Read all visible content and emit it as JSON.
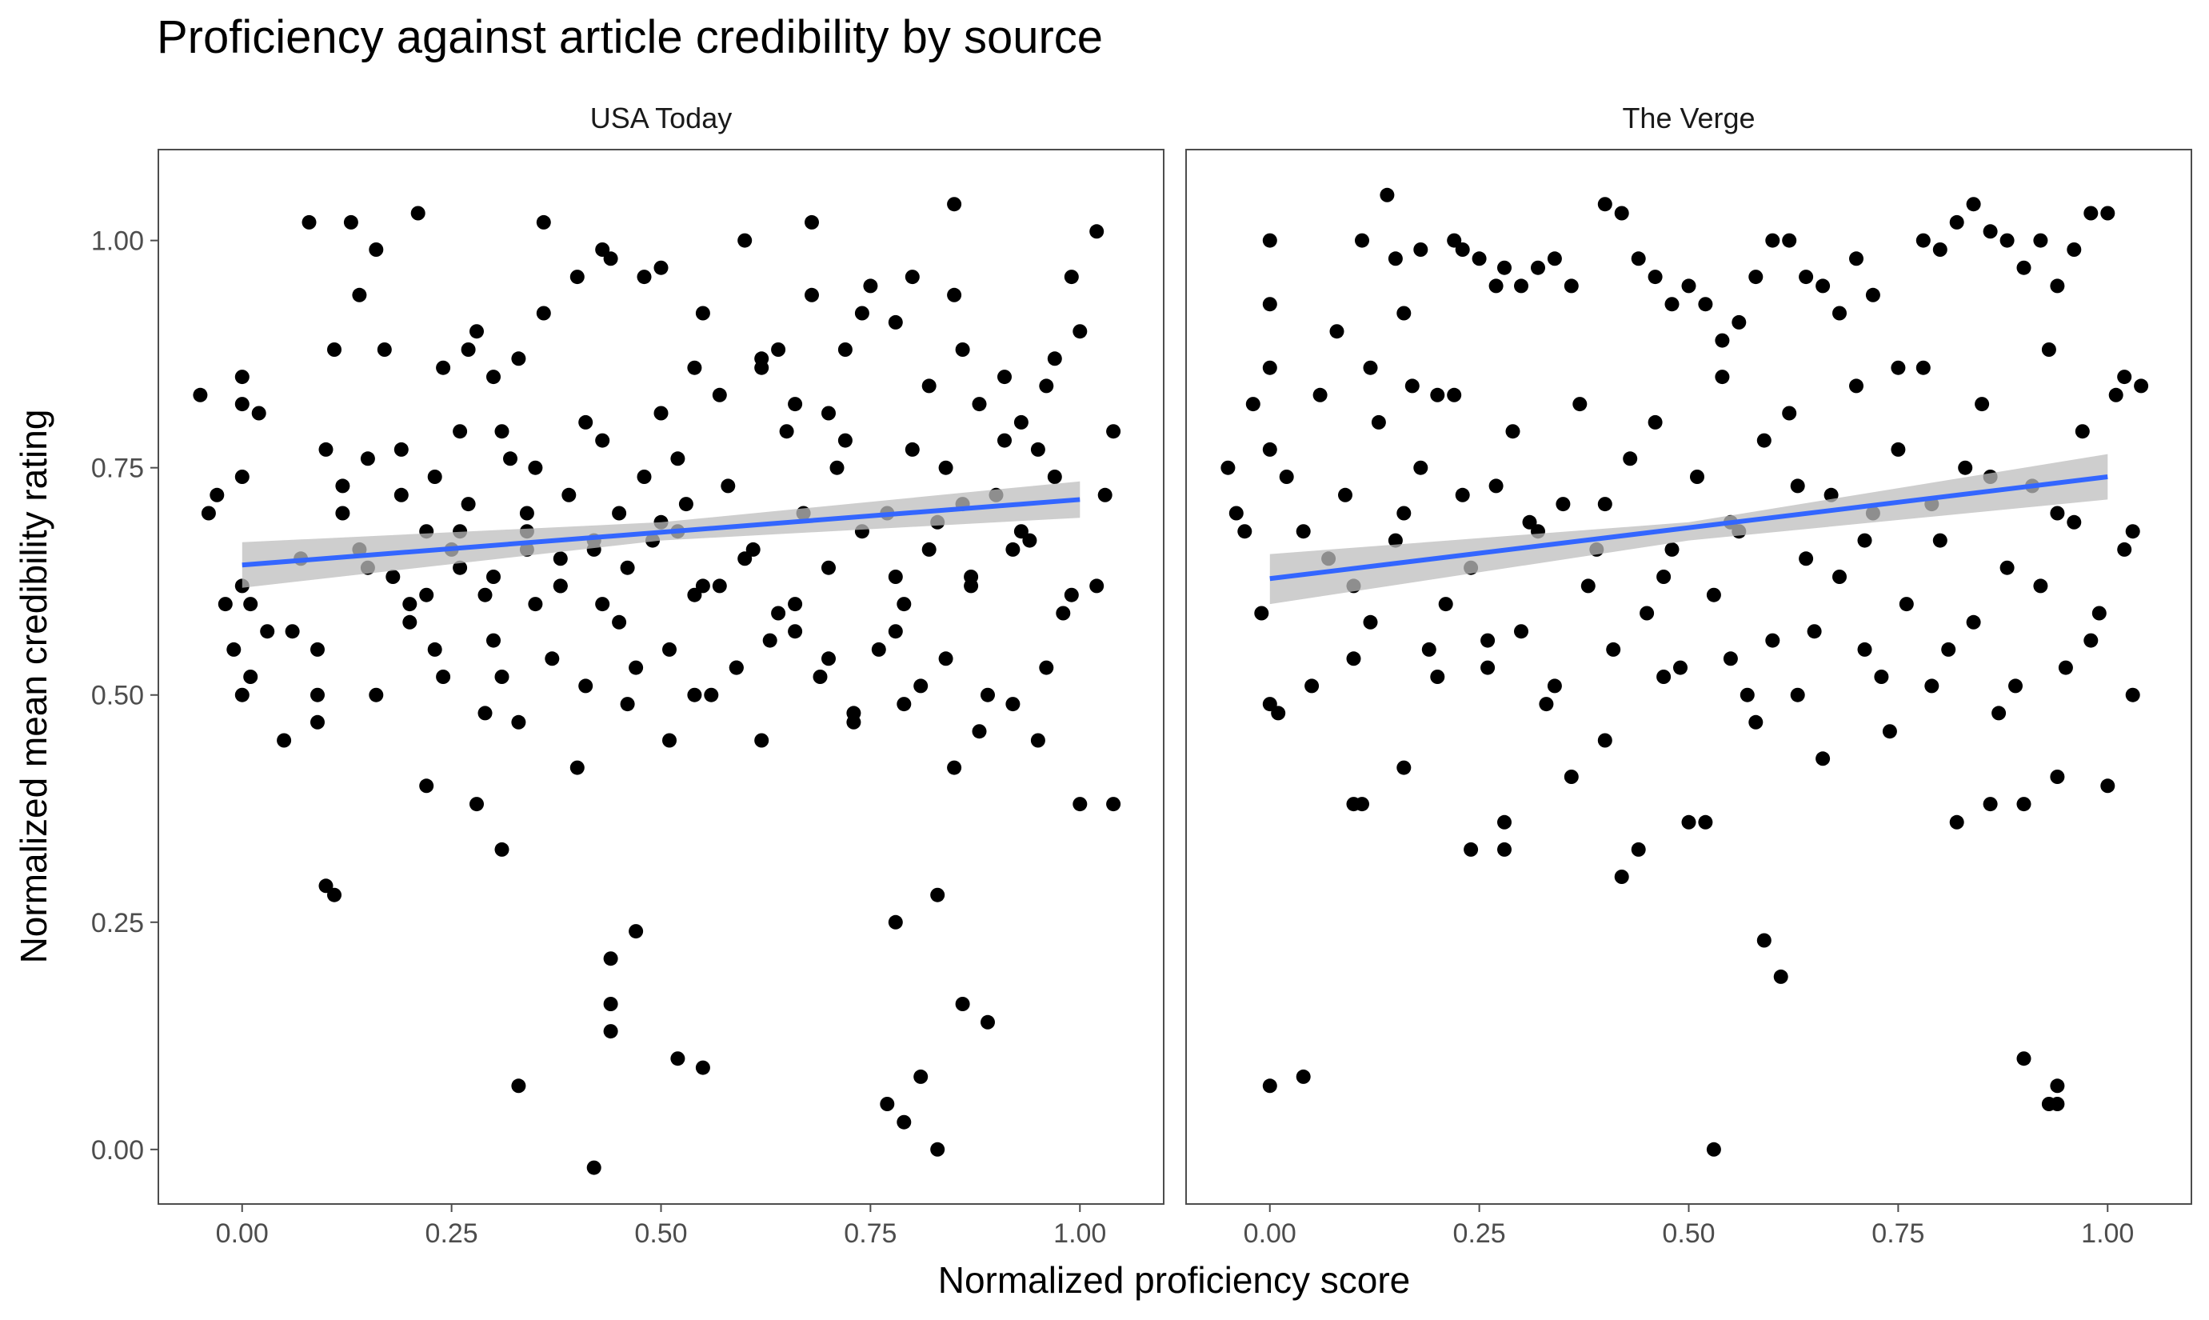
{
  "chart_data": {
    "type": "scatter",
    "title": "Proficiency against article credibility by source",
    "xlabel": "Normalized proficiency score",
    "ylabel": "Normalized mean credibility rating",
    "xlim": [
      -0.1,
      1.1
    ],
    "ylim": [
      -0.06,
      1.1
    ],
    "x_ticks": [
      "0.00",
      "0.25",
      "0.50",
      "0.75",
      "1.00"
    ],
    "y_ticks": [
      "0.00",
      "0.25",
      "0.50",
      "0.75",
      "1.00"
    ],
    "grid": false,
    "colors": {
      "points": "#000000",
      "fit_line": "#3366ff",
      "confidence_band": "#bdbdbd",
      "panel_border": "#4d4d4d"
    },
    "facets": [
      {
        "label": "USA Today",
        "fit_line": {
          "x": [
            0.0,
            1.0
          ],
          "y": [
            0.643,
            0.715
          ]
        },
        "confidence_band": {
          "x": [
            0.0,
            0.5,
            1.0
          ],
          "upper": [
            0.668,
            0.69,
            0.735
          ],
          "lower": [
            0.618,
            0.67,
            0.695
          ]
        },
        "points": {
          "x": [
            -0.05,
            -0.04,
            -0.03,
            -0.02,
            -0.01,
            0.0,
            0.0,
            0.0,
            0.0,
            0.01,
            0.0,
            0.01,
            0.02,
            0.03,
            0.05,
            0.06,
            0.07,
            0.08,
            0.09,
            0.1,
            0.11,
            0.12,
            0.13,
            0.14,
            0.15,
            0.16,
            0.17,
            0.18,
            0.19,
            0.2,
            0.21,
            0.22,
            0.23,
            0.24,
            0.25,
            0.26,
            0.27,
            0.28,
            0.29,
            0.3,
            0.31,
            0.32,
            0.33,
            0.34,
            0.35,
            0.36,
            0.38,
            0.4,
            0.41,
            0.42,
            0.43,
            0.44,
            0.45,
            0.47,
            0.48,
            0.5,
            0.52,
            0.54,
            0.55,
            0.57,
            0.6,
            0.62,
            0.64,
            0.66,
            0.68,
            0.7,
            0.72,
            0.75,
            0.77,
            0.78,
            0.8,
            0.82,
            0.84,
            0.85,
            0.86,
            0.88,
            0.9,
            0.92,
            0.95,
            0.97,
            0.99,
            1.0,
            1.02,
            1.04,
            0.1,
            0.11,
            0.31,
            0.33,
            0.42,
            0.44,
            0.44,
            0.44,
            0.47,
            0.52,
            0.55,
            0.77,
            0.78,
            0.79,
            0.81,
            0.83,
            0.83,
            0.86,
            0.89,
            0.09,
            0.09,
            0.22,
            0.28,
            0.4,
            0.51,
            0.54,
            0.59,
            0.62,
            0.66,
            0.7,
            0.73,
            0.79,
            0.85,
            0.88,
            0.95,
            1.0,
            1.04,
            0.14,
            0.36,
            0.43,
            0.5,
            0.55,
            0.62,
            0.68,
            0.72,
            0.74,
            0.78,
            0.85,
            0.91,
            0.93,
            0.96,
            0.2,
            0.26,
            0.3,
            0.34,
            0.38,
            0.45,
            0.49,
            0.53,
            0.57,
            0.61,
            0.64,
            0.67,
            0.7,
            0.74,
            0.79,
            0.83,
            0.87,
            0.94,
            0.98,
            1.02,
            0.16,
            0.24,
            0.29,
            0.33,
            0.37,
            0.41,
            0.46,
            0.51,
            0.56,
            0.59,
            0.63,
            0.69,
            0.73,
            0.76,
            0.81,
            0.84,
            0.89,
            0.92,
            0.96,
            0.12,
            0.19,
            0.23,
            0.27,
            0.31,
            0.35,
            0.39,
            0.43,
            0.48,
            0.52,
            0.58,
            0.65,
            0.71,
            0.8,
            0.86,
            0.91,
            0.97,
            1.03,
            0.15,
            0.22,
            0.26,
            0.3,
            0.34,
            0.38,
            0.42,
            0.46,
            0.5,
            0.54,
            0.6,
            0.66,
            0.78,
            0.82,
            0.87,
            0.93,
            0.99
          ],
          "y": [
            0.83,
            0.7,
            0.72,
            0.6,
            0.55,
            0.85,
            0.82,
            0.74,
            0.62,
            0.6,
            0.5,
            0.52,
            0.81,
            0.57,
            0.45,
            0.57,
            0.65,
            1.02,
            0.55,
            0.77,
            0.88,
            0.7,
            1.02,
            0.66,
            0.76,
            0.99,
            0.88,
            0.63,
            0.72,
            0.6,
            1.03,
            0.68,
            0.55,
            0.86,
            0.66,
            0.79,
            0.88,
            0.9,
            0.61,
            0.85,
            0.52,
            0.76,
            0.87,
            0.68,
            0.6,
            1.02,
            0.62,
            0.96,
            0.8,
            0.66,
            0.6,
            0.98,
            0.7,
            0.53,
            0.96,
            0.81,
            0.68,
            0.86,
            0.62,
            0.83,
            1.0,
            0.86,
            0.88,
            0.82,
            1.02,
            0.81,
            0.78,
            0.95,
            0.7,
            0.57,
            0.96,
            0.84,
            0.75,
            1.04,
            0.88,
            0.82,
            0.72,
            0.66,
            0.77,
            0.87,
            0.96,
            0.9,
            1.01,
            0.79,
            0.29,
            0.28,
            0.33,
            0.07,
            -0.02,
            0.21,
            0.16,
            0.13,
            0.24,
            0.1,
            0.09,
            0.05,
            0.25,
            0.03,
            0.08,
            0.28,
            0.0,
            0.16,
            0.14,
            0.5,
            0.47,
            0.4,
            0.38,
            0.42,
            0.45,
            0.5,
            0.53,
            0.45,
            0.57,
            0.54,
            0.47,
            0.49,
            0.42,
            0.46,
            0.45,
            0.38,
            0.38,
            0.94,
            0.92,
            0.99,
            0.97,
            0.92,
            0.87,
            0.94,
            0.88,
            0.92,
            0.91,
            0.94,
            0.85,
            0.8,
            0.84,
            0.58,
            0.64,
            0.56,
            0.7,
            0.65,
            0.58,
            0.67,
            0.71,
            0.62,
            0.66,
            0.59,
            0.7,
            0.64,
            0.68,
            0.6,
            0.69,
            0.63,
            0.67,
            0.59,
            0.62,
            0.5,
            0.52,
            0.48,
            0.47,
            0.54,
            0.51,
            0.49,
            0.55,
            0.5,
            0.53,
            0.56,
            0.52,
            0.48,
            0.55,
            0.51,
            0.54,
            0.5,
            0.49,
            0.53,
            0.73,
            0.77,
            0.74,
            0.71,
            0.79,
            0.75,
            0.72,
            0.78,
            0.74,
            0.76,
            0.73,
            0.79,
            0.75,
            0.77,
            0.71,
            0.78,
            0.74,
            0.72,
            0.64,
            0.61,
            0.68,
            0.63,
            0.66,
            0.62,
            0.67,
            0.64,
            0.69,
            0.61,
            0.65,
            0.6,
            0.63,
            0.66,
            0.62,
            0.68,
            0.61
          ]
        }
      },
      {
        "label": "The Verge",
        "fit_line": {
          "x": [
            0.0,
            1.0
          ],
          "y": [
            0.628,
            0.74
          ]
        },
        "confidence_band": {
          "x": [
            0.0,
            0.5,
            1.0
          ],
          "upper": [
            0.655,
            0.69,
            0.765
          ],
          "lower": [
            0.6,
            0.67,
            0.715
          ]
        },
        "points": {
          "x": [
            -0.05,
            -0.04,
            -0.03,
            -0.02,
            -0.01,
            0.0,
            0.0,
            0.0,
            0.0,
            0.0,
            0.01,
            0.02,
            0.04,
            0.06,
            0.08,
            0.1,
            0.11,
            0.12,
            0.14,
            0.15,
            0.16,
            0.17,
            0.18,
            0.2,
            0.22,
            0.23,
            0.25,
            0.27,
            0.28,
            0.3,
            0.32,
            0.34,
            0.36,
            0.4,
            0.42,
            0.44,
            0.46,
            0.48,
            0.5,
            0.52,
            0.54,
            0.56,
            0.58,
            0.6,
            0.62,
            0.64,
            0.66,
            0.68,
            0.7,
            0.72,
            0.75,
            0.78,
            0.8,
            0.82,
            0.84,
            0.86,
            0.88,
            0.9,
            0.92,
            0.94,
            0.96,
            0.98,
            1.0,
            1.02,
            1.04,
            0.0,
            0.04,
            0.42,
            0.44,
            0.5,
            0.52,
            0.53,
            0.59,
            0.61,
            0.9,
            0.93,
            0.94,
            0.94,
            0.1,
            0.11,
            0.16,
            0.24,
            0.28,
            0.28,
            0.36,
            0.4,
            0.58,
            0.66,
            0.74,
            0.82,
            0.86,
            0.9,
            0.94,
            1.0,
            0.05,
            0.19,
            0.26,
            0.33,
            0.47,
            0.55,
            0.63,
            0.71,
            0.79,
            0.87,
            0.95,
            1.03,
            0.12,
            0.21,
            0.3,
            0.38,
            0.45,
            0.53,
            0.6,
            0.68,
            0.76,
            0.84,
            0.92,
            0.99,
            0.07,
            0.15,
            0.24,
            0.31,
            0.39,
            0.47,
            0.56,
            0.64,
            0.72,
            0.8,
            0.88,
            0.96,
            1.02,
            0.09,
            0.18,
            0.27,
            0.35,
            0.43,
            0.51,
            0.59,
            0.67,
            0.75,
            0.83,
            0.91,
            0.97,
            0.13,
            0.22,
            0.29,
            0.37,
            0.46,
            0.54,
            0.62,
            0.7,
            0.78,
            0.85,
            0.93,
            1.01,
            0.1,
            0.2,
            0.26,
            0.34,
            0.41,
            0.49,
            0.57,
            0.65,
            0.73,
            0.81,
            0.89,
            0.98,
            0.16,
            0.23,
            0.32,
            0.4,
            0.48,
            0.55,
            0.63,
            0.71,
            0.79,
            0.86,
            0.94,
            1.03
          ],
          "y": [
            0.75,
            0.7,
            0.68,
            0.82,
            0.59,
            1.0,
            0.93,
            0.86,
            0.77,
            0.49,
            0.48,
            0.74,
            0.68,
            0.83,
            0.9,
            0.62,
            1.0,
            0.86,
            1.05,
            0.98,
            0.92,
            0.84,
            0.99,
            0.83,
            1.0,
            0.99,
            0.98,
            0.95,
            0.97,
            0.95,
            0.97,
            0.98,
            0.95,
            1.04,
            1.03,
            0.98,
            0.96,
            0.93,
            0.95,
            0.93,
            0.89,
            0.91,
            0.96,
            1.0,
            1.0,
            0.96,
            0.95,
            0.92,
            0.98,
            0.94,
            0.86,
            1.0,
            0.99,
            1.02,
            1.04,
            1.01,
            1.0,
            0.97,
            1.0,
            0.95,
            0.99,
            1.03,
            1.03,
            0.85,
            0.84,
            0.07,
            0.08,
            0.3,
            0.33,
            0.36,
            0.36,
            0.0,
            0.23,
            0.19,
            0.1,
            0.05,
            0.07,
            0.05,
            0.38,
            0.38,
            0.42,
            0.33,
            0.33,
            0.36,
            0.41,
            0.45,
            0.47,
            0.43,
            0.46,
            0.36,
            0.38,
            0.38,
            0.41,
            0.4,
            0.51,
            0.55,
            0.53,
            0.49,
            0.52,
            0.54,
            0.5,
            0.55,
            0.51,
            0.48,
            0.53,
            0.5,
            0.58,
            0.6,
            0.57,
            0.62,
            0.59,
            0.61,
            0.56,
            0.63,
            0.6,
            0.58,
            0.62,
            0.59,
            0.65,
            0.67,
            0.64,
            0.69,
            0.66,
            0.63,
            0.68,
            0.65,
            0.7,
            0.67,
            0.64,
            0.69,
            0.66,
            0.72,
            0.75,
            0.73,
            0.71,
            0.76,
            0.74,
            0.78,
            0.72,
            0.77,
            0.75,
            0.73,
            0.79,
            0.8,
            0.83,
            0.79,
            0.82,
            0.8,
            0.85,
            0.81,
            0.84,
            0.86,
            0.82,
            0.88,
            0.83,
            0.54,
            0.52,
            0.56,
            0.51,
            0.55,
            0.53,
            0.5,
            0.57,
            0.52,
            0.55,
            0.51,
            0.56,
            0.7,
            0.72,
            0.68,
            0.71,
            0.66,
            0.69,
            0.73,
            0.67,
            0.71,
            0.74,
            0.7,
            0.68
          ]
        }
      }
    ]
  }
}
